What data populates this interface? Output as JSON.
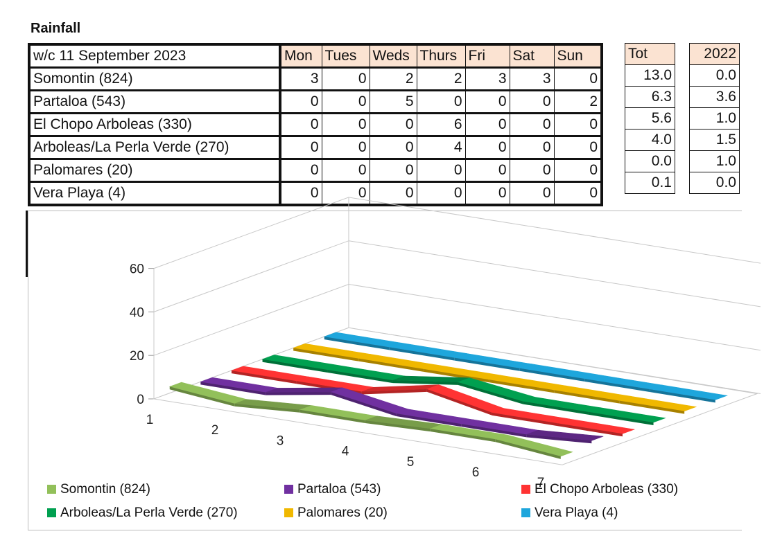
{
  "title": "Rainfall",
  "table": {
    "week_label": "w/c 11 September 2023",
    "days": [
      "Mon",
      "Tues",
      "Weds",
      "Thurs",
      "Fri",
      "Sat",
      "Sun"
    ],
    "tot_header": "Tot",
    "prev_year_header": "2022",
    "rows": [
      {
        "station": "Somontin (824)",
        "values": [
          "3",
          "0",
          "2",
          "2",
          "3",
          "3",
          "0"
        ],
        "tot": "13.0",
        "prev": "0.0"
      },
      {
        "station": "Partaloa (543)",
        "values": [
          "0",
          "0",
          "5",
          "0",
          "0",
          "0",
          "2"
        ],
        "tot": "6.3",
        "prev": "3.6"
      },
      {
        "station": "El Chopo Arboleas (330)",
        "values": [
          "0",
          "0",
          "0",
          "6",
          "0",
          "0",
          "0"
        ],
        "tot": "5.6",
        "prev": "1.0"
      },
      {
        "station": "Arboleas/La Perla Verde (270)",
        "values": [
          "0",
          "0",
          "0",
          "4",
          "0",
          "0",
          "0"
        ],
        "tot": "4.0",
        "prev": "1.5"
      },
      {
        "station": "Palomares (20)",
        "values": [
          "0",
          "0",
          "0",
          "0",
          "0",
          "0",
          "0"
        ],
        "tot": "0.0",
        "prev": "1.0"
      },
      {
        "station": "Vera Playa (4)",
        "values": [
          "0",
          "0",
          "0",
          "0",
          "0",
          "0",
          "0"
        ],
        "tot": "0.1",
        "prev": "0.0"
      }
    ]
  },
  "chart_data": {
    "type": "line",
    "subtype": "3d-ribbon",
    "x": [
      1,
      2,
      3,
      4,
      5,
      6,
      7
    ],
    "x_tick_labels": [
      "1",
      "2",
      "3",
      "4",
      "5",
      "6",
      "7"
    ],
    "y_ticks": [
      "0",
      "20",
      "40",
      "60"
    ],
    "ylim": [
      0,
      60
    ],
    "grid": true,
    "legend_position": "bottom",
    "series": [
      {
        "name": "Somontin (824)",
        "values": [
          3,
          0,
          2,
          2,
          3,
          3,
          0
        ],
        "color": "#92c05a"
      },
      {
        "name": "Partaloa (543)",
        "values": [
          0,
          0,
          5,
          0,
          0,
          0,
          2
        ],
        "color": "#7030a0"
      },
      {
        "name": "El Chopo Arboleas (330)",
        "values": [
          0,
          0,
          0,
          6,
          0,
          0,
          0
        ],
        "color": "#ff3333"
      },
      {
        "name": "Arboleas/La Perla Verde (270)",
        "values": [
          0,
          0,
          0,
          4,
          0,
          0,
          0
        ],
        "color": "#00a050"
      },
      {
        "name": "Palomares (20)",
        "values": [
          0,
          0,
          0,
          0,
          0,
          0,
          0
        ],
        "color": "#f0b800"
      },
      {
        "name": "Vera Playa (4)",
        "values": [
          0,
          0,
          0,
          0,
          0,
          0,
          0
        ],
        "color": "#1ea6dc"
      }
    ]
  }
}
